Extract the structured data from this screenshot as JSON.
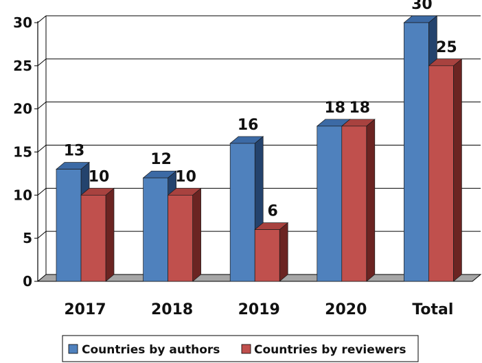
{
  "chart_data": {
    "type": "bar",
    "style": "3d-clustered-column",
    "categories": [
      "2017",
      "2018",
      "2019",
      "2020",
      "Total"
    ],
    "series": [
      {
        "name": "Countries by authors",
        "values": [
          13,
          12,
          16,
          18,
          30
        ],
        "color": "#4f81bd",
        "top_color": "#3c6aa5",
        "side_color": "#24436d"
      },
      {
        "name": "Countries by reviewers",
        "values": [
          10,
          10,
          6,
          18,
          25
        ],
        "color": "#c0504d",
        "top_color": "#a8423f",
        "side_color": "#6b2422"
      }
    ],
    "ylim": [
      0,
      30
    ],
    "yticks": [
      0,
      5,
      10,
      15,
      20,
      25,
      30
    ],
    "grid": true,
    "data_labels": true,
    "legend_position": "bottom",
    "title": "",
    "xlabel": "",
    "ylabel": ""
  }
}
